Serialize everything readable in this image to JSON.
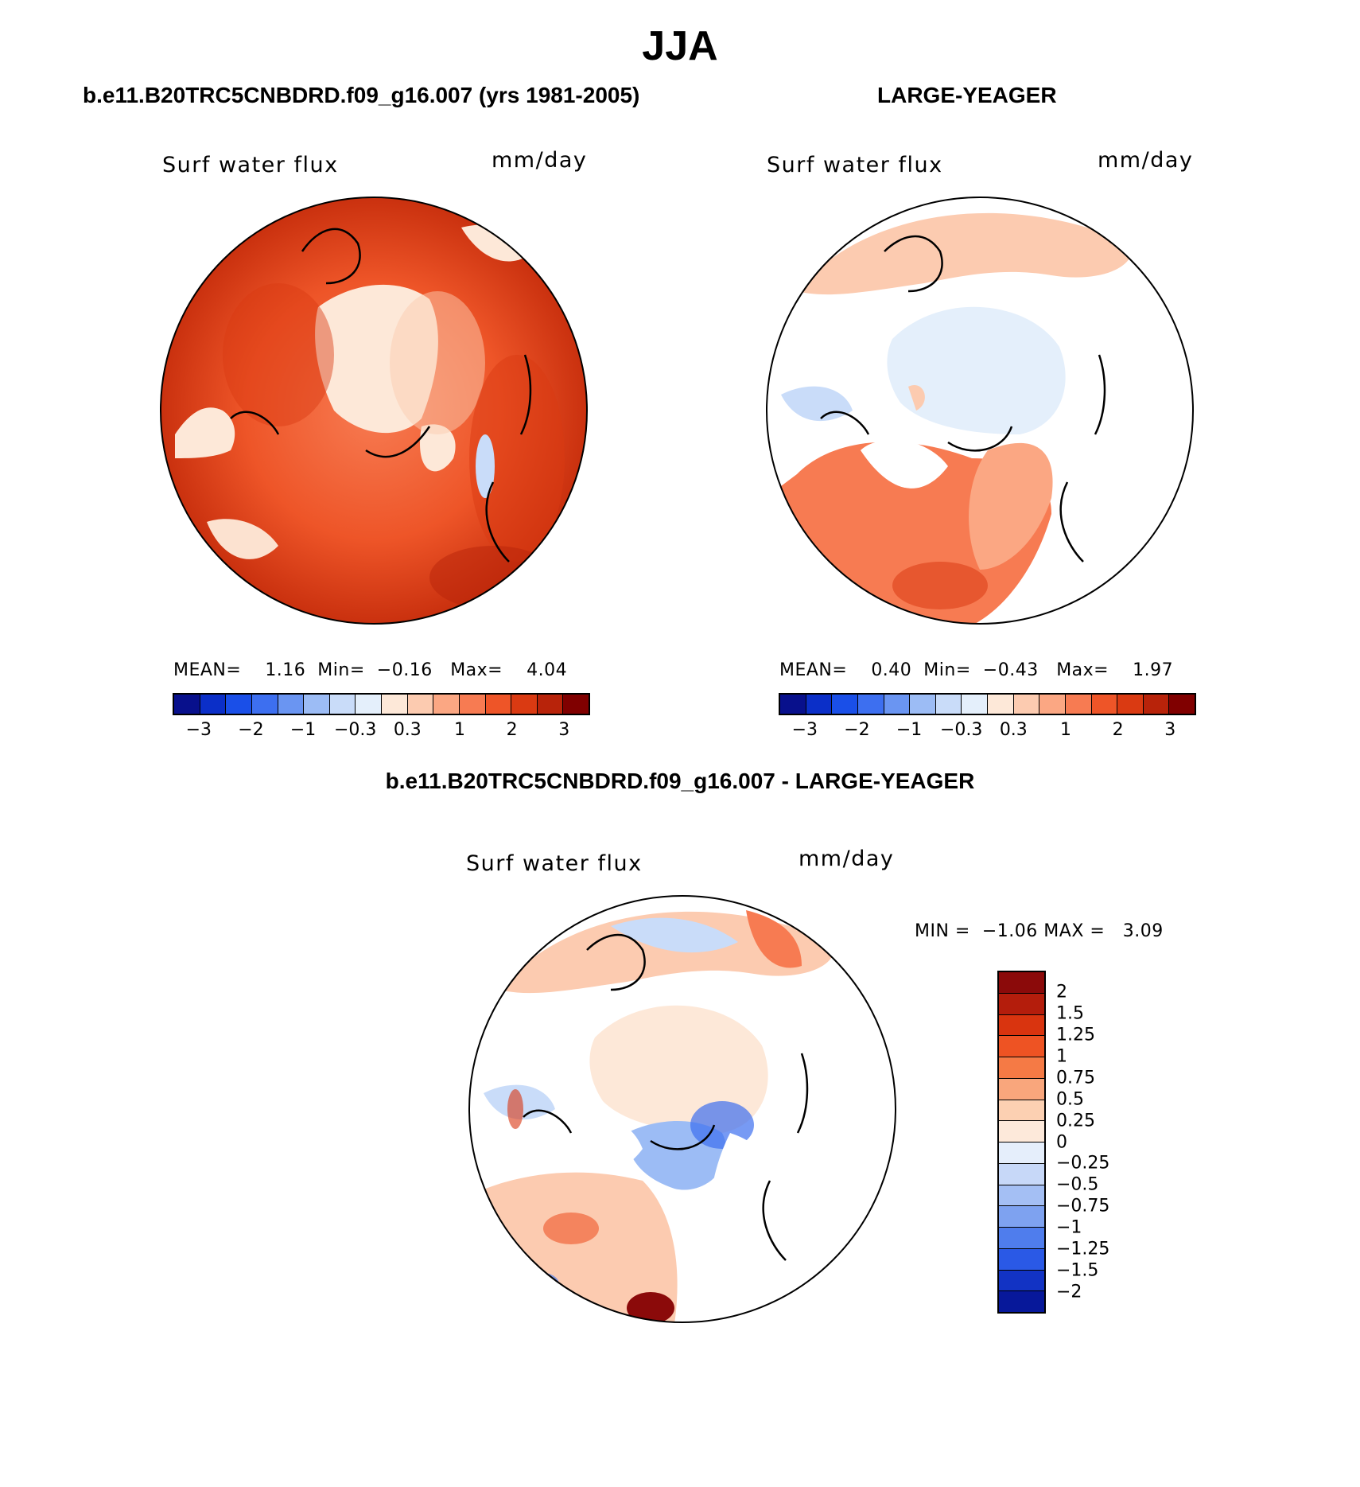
{
  "title": "JJA",
  "panels": {
    "model": {
      "title": "b.e11.B20TRC5CNBDRD.f09_g16.007 (yrs 1981-2005)",
      "variable": "Surf water flux",
      "units": "mm/day",
      "stats": {
        "mean_label": "MEAN=",
        "mean": "1.16",
        "min_label": "Min=",
        "min": "−0.16",
        "max_label": "Max=",
        "max": "4.04"
      }
    },
    "obs": {
      "title": "LARGE-YEAGER",
      "variable": "Surf water flux",
      "units": "mm/day",
      "stats": {
        "mean_label": "MEAN=",
        "mean": "0.40",
        "min_label": "Min=",
        "min": "−0.43",
        "max_label": "Max=",
        "max": "1.97"
      }
    },
    "diff": {
      "title": "b.e11.B20TRC5CNBDRD.f09_g16.007 - LARGE-YEAGER",
      "variable": "Surf water flux",
      "units": "mm/day",
      "stats": {
        "min_label": "MIN =",
        "min": "−1.06",
        "max_label": "MAX =",
        "max": "3.09"
      }
    }
  },
  "colorbar_horizontal": {
    "colors": [
      "#08108c",
      "#0b2fc8",
      "#1a4fe8",
      "#3d6ff0",
      "#6a95f2",
      "#9cbcf5",
      "#c9dcf9",
      "#e4effb",
      "#fde8d8",
      "#fccbb0",
      "#fba783",
      "#f77b52",
      "#ee5528",
      "#da3a12",
      "#b8230a",
      "#800000"
    ],
    "tick_labels": [
      "−3",
      "−2",
      "−1",
      "−0.3",
      "0.3",
      "1",
      "2",
      "3"
    ]
  },
  "colorbar_vertical": {
    "colors": [
      "#8b0a0a",
      "#b41d0c",
      "#d9340f",
      "#ee5323",
      "#f57a45",
      "#f9a67c",
      "#fcd0b2",
      "#fde9da",
      "#e5eefb",
      "#c7d8f8",
      "#a4bff4",
      "#7ea2f0",
      "#4f7ded",
      "#2a59e6",
      "#1233c4",
      "#07189a"
    ],
    "tick_labels": [
      "2",
      "1.5",
      "1.25",
      "1",
      "0.75",
      "0.5",
      "0.25",
      "0",
      "−0.25",
      "−0.5",
      "−0.75",
      "−1",
      "−1.25",
      "−1.5",
      "−2"
    ]
  }
}
